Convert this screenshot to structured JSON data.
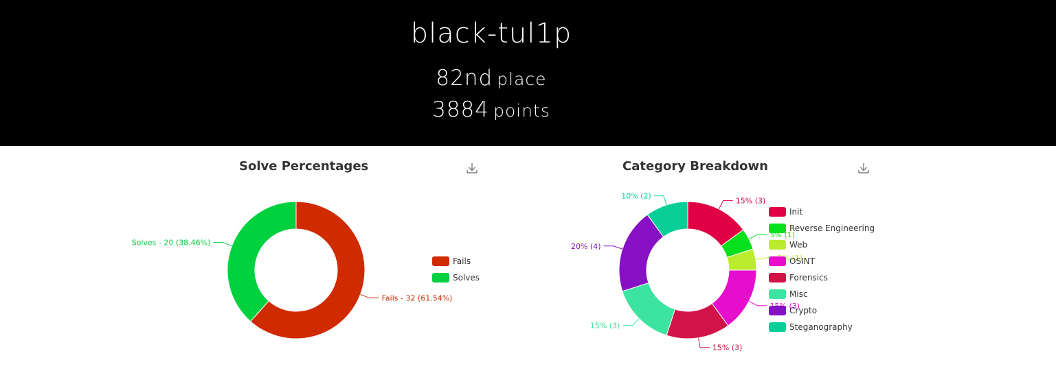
{
  "header": {
    "team_name": "black-tul1p",
    "place_number": "82nd",
    "place_label": "place",
    "points_number": "3884",
    "points_label": "points"
  },
  "charts": {
    "solve_title": "Solve Percentages",
    "category_title": "Category Breakdown"
  },
  "chart_data": [
    {
      "type": "pie",
      "title": "Solve Percentages",
      "legend_position": "right",
      "series": [
        {
          "name": "Fails",
          "value": 32,
          "label": "Fails - 32 (61.54%)",
          "color": "#cf2a00"
        },
        {
          "name": "Solves",
          "value": 20,
          "label": "Solves - 20 (38.46%)",
          "color": "#00d13f"
        }
      ]
    },
    {
      "type": "pie",
      "title": "Category Breakdown",
      "legend_position": "right",
      "series": [
        {
          "name": "Init",
          "value": 3,
          "label": "15% (3)",
          "color": "#e00043"
        },
        {
          "name": "Reverse Engineering",
          "value": 1,
          "label": "5% (1)",
          "color": "#09e01d"
        },
        {
          "name": "Web",
          "value": 1,
          "label": "5% (1)",
          "color": "#bbeb2d"
        },
        {
          "name": "OSINT",
          "value": 3,
          "label": "15% (3)",
          "color": "#e60dcd"
        },
        {
          "name": "Forensics",
          "value": 3,
          "label": "15% (3)",
          "color": "#d11448"
        },
        {
          "name": "Misc",
          "value": 3,
          "label": "15% (3)",
          "color": "#3de3a0"
        },
        {
          "name": "Crypto",
          "value": 4,
          "label": "20% (4)",
          "color": "#870fc4"
        },
        {
          "name": "Steganography",
          "value": 2,
          "label": "10% (2)",
          "color": "#07cf97"
        }
      ]
    }
  ]
}
